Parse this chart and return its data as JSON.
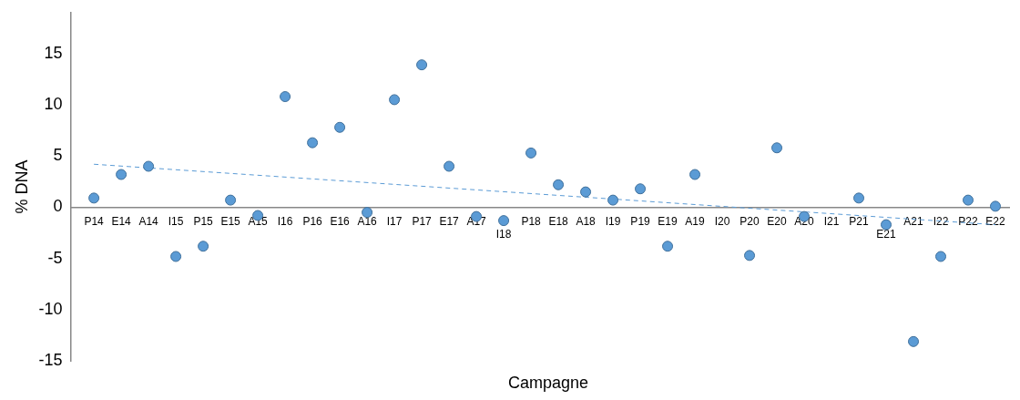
{
  "chart_data": {
    "type": "scatter",
    "xlabel": "Campagne",
    "ylabel": "% DNA",
    "categories": [
      "P14",
      "E14",
      "A14",
      "I15",
      "P15",
      "E15",
      "A15",
      "I16",
      "P16",
      "E16",
      "A16",
      "I17",
      "P17",
      "E17",
      "A17",
      "I18",
      "P18",
      "E18",
      "A18",
      "I19",
      "P19",
      "E19",
      "A19",
      "I20",
      "P20",
      "E20",
      "A20",
      "I21",
      "P21",
      "E21",
      "A21",
      "I22",
      "P22",
      "E22"
    ],
    "series": [
      {
        "color": "#5b9bd5",
        "marker": "circle",
        "values": [
          0.9,
          3.2,
          4.0,
          -4.8,
          -3.8,
          0.7,
          -0.8,
          10.8,
          6.3,
          7.8,
          -0.5,
          10.5,
          13.9,
          4.0,
          -0.9,
          -1.3,
          5.3,
          2.2,
          1.5,
          0.7,
          1.8,
          -3.8,
          3.2,
          null,
          -4.7,
          5.8,
          -0.9,
          null,
          0.9,
          -1.7,
          -13.1,
          -4.8,
          0.7,
          0.1
        ]
      },
      {
        "type": "line",
        "color": "#5b9bd5",
        "line_style": "dashed",
        "marker": "none",
        "x": [
          "P14",
          "E22"
        ],
        "values": [
          4.2,
          -1.7
        ]
      }
    ],
    "ylim": [
      -15,
      19
    ],
    "yticks": [
      -15,
      -10,
      -5,
      0,
      5,
      10,
      15
    ],
    "grid": false,
    "legend": false
  }
}
